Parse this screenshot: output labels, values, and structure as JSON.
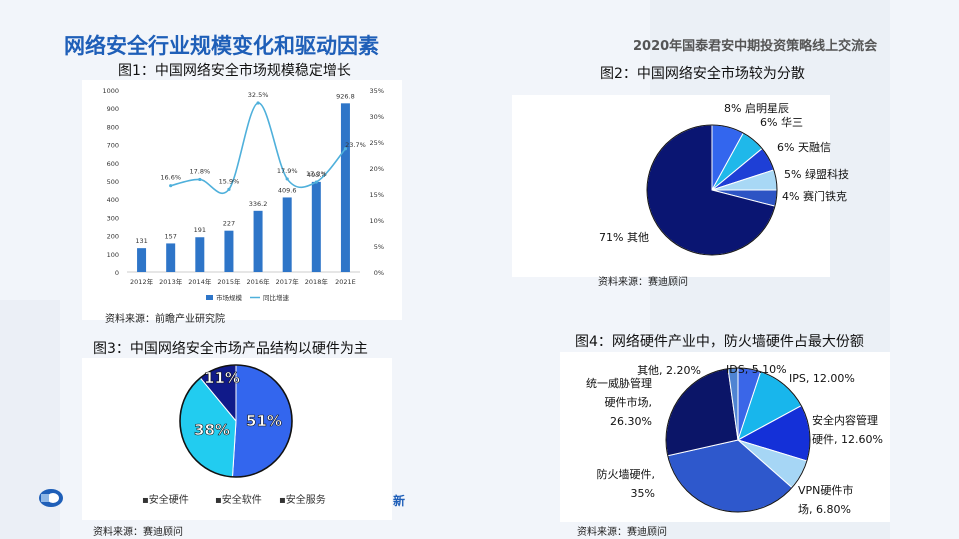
{
  "header": {
    "title": "网络安全行业规模变化和驱动因素",
    "subtitle": "2020年国泰君安中期投资策略线上交流会"
  },
  "fig1": {
    "title": "图1：中国网络安全市场规模稳定增长",
    "source": "资料来源：前瞻产业研究院"
  },
  "fig2": {
    "title": "图2：中国网络安全市场较为分散",
    "source": "资料来源：赛迪顾问"
  },
  "fig3": {
    "title": "图3：中国网络安全市场产品结构以硬件为主",
    "source": "资料来源：赛迪顾问"
  },
  "fig4": {
    "title": "图4：网络硬件产业中，防火墙硬件占最大份额",
    "source": "资料来源：赛迪顾问"
  },
  "footer": {
    "fragment": "新"
  },
  "chart_data": [
    {
      "type": "bar",
      "categories": [
        "2012年",
        "2013年",
        "2014年",
        "2015年",
        "2016年",
        "2017年",
        "2018年",
        "2021E"
      ],
      "series": [
        {
          "name": "市场规模",
          "values": [
            131,
            157,
            191,
            227,
            336.2,
            409.6,
            495.2,
            926.8
          ],
          "color": "#2e75c8"
        },
        {
          "name": "同比增速",
          "type": "line",
          "values": [
            null,
            16.6,
            17.8,
            15.9,
            32.5,
            17.9,
            17.3,
            23.7
          ],
          "color": "#4fb0db"
        }
      ],
      "value_labels": [
        "131",
        "157",
        "191",
        "227",
        "336.2",
        "409.6",
        "495.2",
        "926.8"
      ],
      "rate_labels": [
        "16.6%",
        "17.8%",
        "15.9%",
        "32.5%",
        "17.9%",
        "17.3%",
        "23.7%"
      ],
      "y_ticks": [
        "0",
        "100",
        "200",
        "300",
        "400",
        "500",
        "600",
        "700",
        "800",
        "900",
        "1000"
      ],
      "y2_ticks": [
        "0%",
        "5%",
        "10%",
        "15%",
        "20%",
        "25%",
        "30%",
        "35%"
      ],
      "ylim": [
        0,
        1000
      ],
      "y2lim": [
        0,
        35
      ],
      "legend_position": "bottom"
    },
    {
      "type": "pie",
      "labels": [
        "启明星辰",
        "华三",
        "天融信",
        "绿盟科技",
        "赛门铁克",
        "其他"
      ],
      "values": [
        8,
        6,
        6,
        5,
        4,
        71
      ],
      "display": [
        "8% 启明星辰",
        "6% 华三",
        "6% 天融信",
        "5% 绿盟科技",
        "4% 赛门铁克",
        "71% 其他"
      ],
      "colors": [
        "#3366ee",
        "#1fb8ea",
        "#1e3fd6",
        "#a8d8f5",
        "#2d54c4",
        "#0a1572"
      ]
    },
    {
      "type": "pie",
      "labels": [
        "安全硬件",
        "安全软件",
        "安全服务"
      ],
      "values": [
        51,
        38,
        11
      ],
      "display": [
        "51%",
        "38%",
        "11%"
      ],
      "colors": [
        "#3366ee",
        "#22ccf0",
        "#101a8a"
      ],
      "legend": [
        "▪安全硬件",
        "▪安全软件",
        "▪安全服务"
      ],
      "legend_position": "bottom"
    },
    {
      "type": "pie",
      "labels": [
        "IDS",
        "IPS",
        "安全内容管理硬件",
        "VPN硬件市场",
        "防火墙硬件",
        "统一威胁管理硬件市场",
        "其他"
      ],
      "values": [
        5.1,
        12.0,
        12.6,
        6.8,
        35,
        26.3,
        2.2
      ],
      "display": [
        "IDS, 5.10%",
        "IPS, 12.00%",
        "安全内容管理|硬件, 12.60%",
        "VPN硬件市|场, 6.80%",
        "防火墙硬件,|35%",
        "统一威胁管理|硬件市场,|26.30%",
        "其他, 2.20%"
      ],
      "colors": [
        "#3a66e8",
        "#18b6ec",
        "#1430d8",
        "#a6d6f5",
        "#2e58cc",
        "#0b1568",
        "#4f84d2"
      ]
    }
  ]
}
